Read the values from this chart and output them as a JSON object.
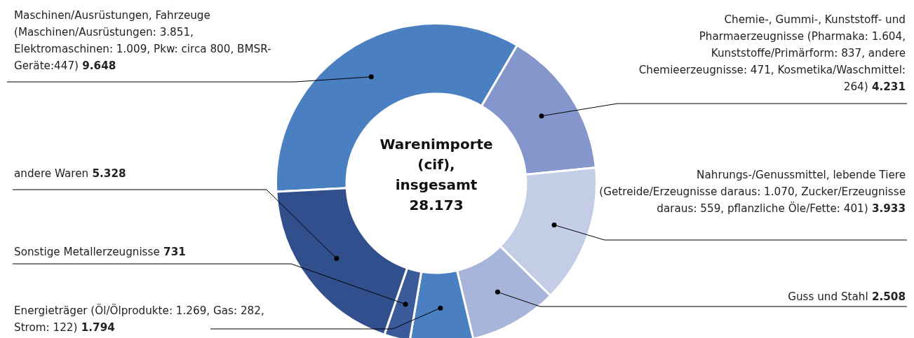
{
  "chart_data": {
    "type": "donut",
    "categories": [
      "Maschinen/Ausrüstungen, Fahrzeuge (Maschinen/Ausrüstungen: 3.851, Elektromaschinen: 1.009, Pkw: circa 800, BMSR-Geräte:447)",
      "Chemie-, Gummi-, Kunststoff- und Pharmaerzeugnisse (Pharmaka: 1.604, Kunststoffe/Primärform: 837, andere Chemieerzeugnisse: 471, Kosmetika/Waschmittel: 264)",
      "Nahrungs-/Genussmittel, lebende Tiere (Getreide/Erzeugnisse daraus: 1.070, Zucker/Erzeugnisse daraus: 559, pflanzliche Öle/Fette: 401)",
      "Guss und Stahl",
      "Energieträger (Öl/Ölprodukte: 1.269, Gas: 282, Strom: 122)",
      "Sonstige Metallerzeugnisse",
      "andere Waren"
    ],
    "values": [
      9648,
      4231,
      3933,
      2508,
      1794,
      731,
      5328
    ],
    "value_labels": [
      "9.648",
      "4.231",
      "3.933",
      "2.508",
      "1.794",
      "731",
      "5.328"
    ],
    "colors": [
      "#4a7fc1",
      "#8596cc",
      "#c3cde6",
      "#a8b5da",
      "#4a7fc1",
      "#3a5a9a",
      "#304f8c"
    ],
    "annotations": [
      "Warenimporte (cif), insgesamt 28.173"
    ],
    "legend": false
  }
}
